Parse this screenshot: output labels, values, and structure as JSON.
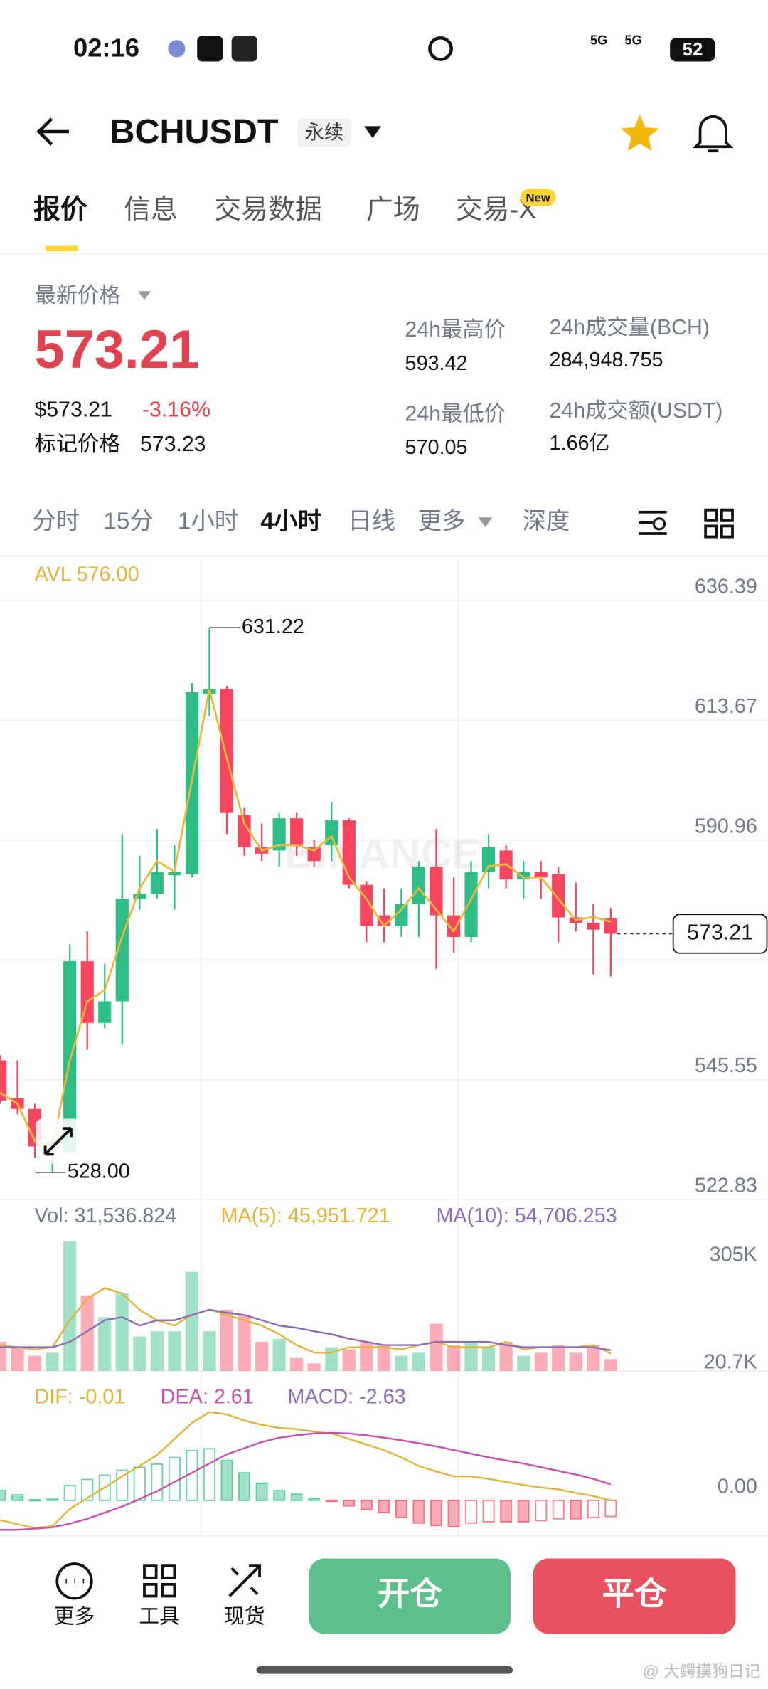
{
  "status_bar": {
    "time": "02:16",
    "network1": "5G",
    "network2": "5G",
    "battery": "52"
  },
  "header": {
    "symbol": "BCHUSDT",
    "contract": "永续"
  },
  "tabs": [
    "报价",
    "信息",
    "交易数据",
    "广场",
    "交易-X"
  ],
  "tab_badge": "New",
  "ticker": {
    "last_price_label": "最新价格",
    "last_price": "573.21",
    "usd_price": "$573.21",
    "change": "-3.16%",
    "mark_price_label": "标记价格",
    "mark_price": "573.23",
    "stats": [
      {
        "label": "24h最高价",
        "value": "593.42"
      },
      {
        "label": "24h最低价",
        "value": "570.05"
      },
      {
        "label": "24h成交量(BCH)",
        "value": "284,948.755"
      },
      {
        "label": "24h成交额(USDT)",
        "value": "1.66亿"
      }
    ]
  },
  "intervals": [
    "分时",
    "15分",
    "1小时",
    "4小时",
    "日线",
    "更多",
    "深度"
  ],
  "chart_data": {
    "type": "candlestick",
    "avl_label": "AVL 576.00",
    "watermark": "BINANCE",
    "up_color": "#2ebd85",
    "down_color": "#f6465d",
    "open": [
      549.2,
      542.0,
      540.0,
      532.8,
      531.8,
      568.0,
      556.3,
      560.4,
      579.8,
      580.8,
      584.3,
      584.5,
      618.6,
      619.6,
      595.7,
      589.6,
      589.0,
      595.1,
      589.6,
      590.0,
      594.7,
      582.5,
      576.7,
      574.7,
      578.8,
      585.9,
      576.7,
      572.6,
      584.9,
      589.0,
      583.5,
      584.9,
      584.5,
      576.3,
      575.3,
      576.1
    ],
    "high": [
      550.2,
      549.2,
      541.0,
      534.5,
      571.2,
      573.7,
      567.5,
      592.1,
      588.0,
      593.1,
      590.0,
      620.7,
      631.22,
      620.2,
      597.2,
      594.1,
      596.1,
      596.1,
      591.0,
      598.2,
      595.1,
      583.1,
      581.8,
      581.8,
      587.0,
      593.1,
      583.9,
      587.0,
      592.1,
      590.0,
      587.0,
      587.0,
      585.9,
      582.9,
      578.8,
      578.1
    ],
    "low": [
      541.0,
      539.0,
      530.8,
      528.0,
      531.2,
      551.2,
      555.3,
      552.2,
      577.8,
      579.8,
      577.8,
      583.9,
      614.5,
      592.1,
      588.0,
      587.0,
      585.9,
      588.0,
      585.9,
      587.0,
      581.8,
      571.6,
      571.6,
      572.6,
      572.6,
      566.5,
      569.6,
      571.6,
      581.8,
      581.8,
      579.8,
      579.8,
      571.6,
      573.7,
      565.5,
      565.1
    ],
    "close": [
      541.6,
      540.0,
      532.9,
      533.8,
      568.0,
      556.3,
      560.4,
      579.8,
      580.8,
      584.9,
      584.9,
      619.0,
      619.6,
      596.1,
      589.6,
      588.4,
      595.1,
      590.0,
      587.0,
      594.7,
      582.5,
      574.7,
      574.7,
      578.8,
      585.9,
      576.7,
      572.6,
      584.9,
      589.6,
      583.5,
      584.9,
      583.9,
      576.3,
      575.3,
      574.0,
      573.21
    ],
    "ma": {
      "color": "#e8b93a",
      "values": [
        543.1,
        541.0,
        533.9,
        532.9,
        549.2,
        560.4,
        562.5,
        572.7,
        581.8,
        587.0,
        585.0,
        602.3,
        619.6,
        606.4,
        594.1,
        589.0,
        590.0,
        590.0,
        589.0,
        591.7,
        583.9,
        579.8,
        574.7,
        577.8,
        581.8,
        577.8,
        573.7,
        579.8,
        586.0,
        586.4,
        583.9,
        583.9,
        579.8,
        575.8,
        576.4,
        575.5
      ]
    },
    "ylim": [
      522.83,
      643.95
    ],
    "yticks": [
      522.83,
      545.55,
      568.25,
      590.96,
      613.67,
      636.39
    ],
    "max_label": "631.22",
    "min_label": "528.00",
    "last_label": "573.21",
    "volume": {
      "legend": "Vol: 31,536.824",
      "ylim": [
        0,
        362000
      ],
      "yticks": [
        {
          "value": 305000,
          "label": "305K"
        },
        {
          "value": 20700,
          "label": "20.7K"
        }
      ],
      "values": [
        77000,
        63000,
        40000,
        48000,
        342000,
        200000,
        142000,
        205000,
        91000,
        105000,
        105000,
        262000,
        105000,
        162000,
        148000,
        77000,
        85000,
        34000,
        20000,
        63000,
        57000,
        77000,
        68000,
        40000,
        48000,
        125000,
        68000,
        77000,
        63000,
        77000,
        40000,
        48000,
        68000,
        48000,
        68000,
        31536.824
      ],
      "series": [
        {
          "name": "MA(5): 45,951.721",
          "color": "#e0b43c",
          "values": [
            68400,
            62700,
            57000,
            62700,
            134000,
            191000,
            219000,
            205000,
            162000,
            134000,
            120000,
            148000,
            162000,
            148000,
            134000,
            120000,
            97000,
            68400,
            48500,
            48500,
            62700,
            62700,
            62700,
            57000,
            68400,
            77000,
            62700,
            62700,
            62700,
            77000,
            57000,
            62700,
            62700,
            62700,
            68400,
            45951.721
          ]
        },
        {
          "name": "MA(10): 54,706.253",
          "color": "#8e6cb8",
          "values": [
            62700,
            62700,
            62700,
            62700,
            77000,
            105000,
            134000,
            142500,
            120000,
            134000,
            134000,
            148000,
            162000,
            154000,
            148000,
            134000,
            120000,
            114000,
            105000,
            97000,
            85500,
            77000,
            68400,
            68400,
            68400,
            77000,
            77000,
            77000,
            77000,
            68400,
            62700,
            62700,
            62700,
            62700,
            62700,
            54706.253
          ]
        }
      ]
    },
    "macd": {
      "ylim": [
        -4.9,
        18.8
      ],
      "yticks": [
        {
          "value": 0,
          "label": "0.00"
        }
      ],
      "histogram_label": "MACD: -2.63",
      "histogram_color": "#8e6cb8",
      "histogram": [
        1.6,
        0.9,
        0.1,
        0.2,
        2.4,
        3.4,
        4.1,
        4.9,
        5.4,
        5.9,
        7.0,
        8.1,
        8.4,
        6.5,
        4.5,
        2.8,
        1.6,
        1.0,
        0.3,
        -0.1,
        -0.9,
        -1.5,
        -2.0,
        -2.8,
        -3.7,
        -4.1,
        -4.3,
        -3.7,
        -3.5,
        -3.5,
        -3.5,
        -3.3,
        -3.0,
        -3.0,
        -2.8,
        -2.63
      ],
      "series": [
        {
          "name": "DIF: -0.01",
          "color": "#e0b43c",
          "values": [
            -3.2,
            -3.9,
            -4.5,
            -4.2,
            -1.4,
            0.4,
            2.1,
            3.9,
            5.6,
            7.4,
            10.0,
            12.6,
            14.4,
            14.0,
            13.0,
            12.3,
            11.8,
            11.6,
            11.2,
            10.9,
            10.0,
            9.1,
            8.2,
            7.0,
            5.6,
            4.7,
            3.9,
            3.9,
            3.5,
            3.0,
            2.5,
            2.1,
            1.8,
            1.2,
            0.7,
            -0.01
          ]
        },
        {
          "name": "DEA: 2.61",
          "color": "#c94fb0",
          "values": [
            -4.8,
            -4.8,
            -4.6,
            -4.4,
            -3.8,
            -3.0,
            -2.0,
            -1.0,
            0.2,
            1.5,
            3.0,
            4.5,
            6.0,
            7.5,
            8.5,
            9.5,
            10.2,
            10.6,
            10.9,
            11.0,
            10.9,
            10.6,
            10.2,
            9.8,
            9.3,
            8.8,
            8.2,
            7.6,
            7.0,
            6.5,
            6.0,
            5.4,
            4.8,
            4.2,
            3.5,
            2.61
          ]
        }
      ]
    }
  },
  "bottom_bar": {
    "tools": [
      "更多",
      "工具",
      "现货"
    ],
    "open": "开仓",
    "close": "平仓"
  },
  "watermark": "@ 大鳄摸狗日记"
}
